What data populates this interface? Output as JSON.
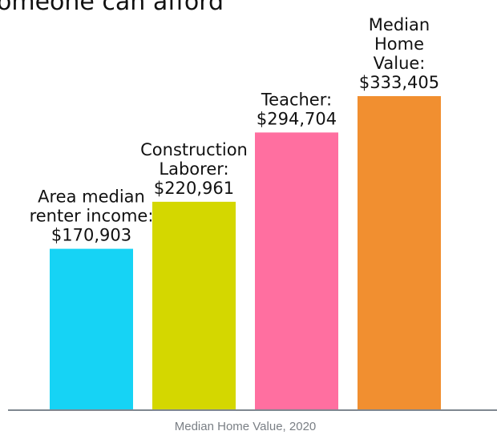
{
  "chart_data": {
    "type": "bar",
    "title": "omeone can afford",
    "x_label": "Median Home Value, 2020",
    "categories": [
      [
        "Area median",
        "renter income:"
      ],
      [
        "Construction",
        "Laborer:"
      ],
      [
        "Teacher:"
      ],
      [
        "Median",
        "Home",
        "Value:"
      ]
    ],
    "values": [
      170903,
      220961,
      294704,
      333405
    ],
    "value_labels": [
      "$170,903",
      "$220,961",
      "$294,704",
      "$333,405"
    ],
    "colors": [
      "#16d3f5",
      "#d4d700",
      "#ff6fa0",
      "#f18f30"
    ]
  }
}
